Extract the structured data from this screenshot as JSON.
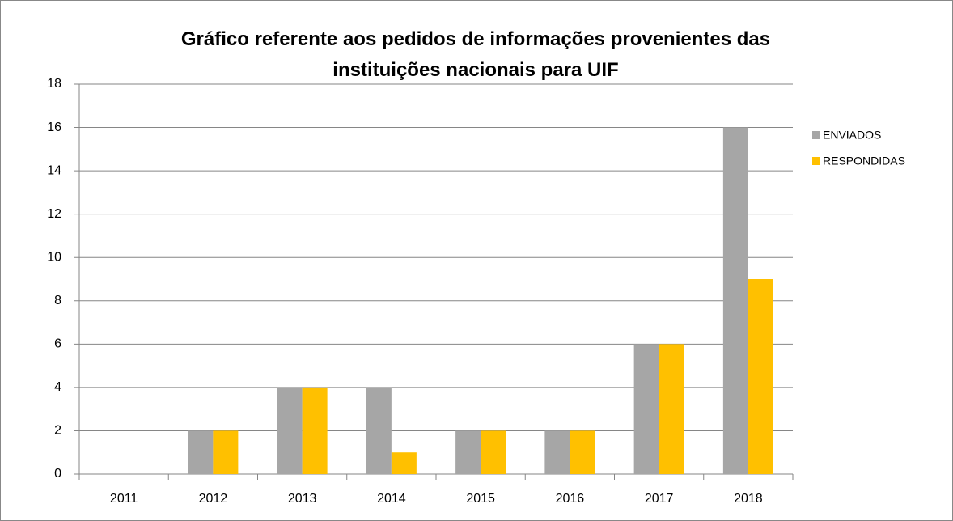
{
  "chart_data": {
    "type": "bar",
    "title": "Gráfico referente aos pedidos de informações provenientes das instituições nacionais para UIF",
    "categories": [
      "2011",
      "2012",
      "2013",
      "2014",
      "2015",
      "2016",
      "2017",
      "2018"
    ],
    "series": [
      {
        "name": "ENVIADOS",
        "color": "#a6a6a6",
        "values": [
          0,
          2,
          4,
          4,
          2,
          2,
          6,
          16
        ]
      },
      {
        "name": "RESPONDIDAS",
        "color": "#ffc000",
        "values": [
          0,
          2,
          4,
          1,
          2,
          2,
          6,
          9
        ]
      }
    ],
    "ylim": [
      0,
      18
    ],
    "yticks": [
      0,
      2,
      4,
      6,
      8,
      10,
      12,
      14,
      16,
      18
    ],
    "grid": true,
    "legend": "right"
  }
}
